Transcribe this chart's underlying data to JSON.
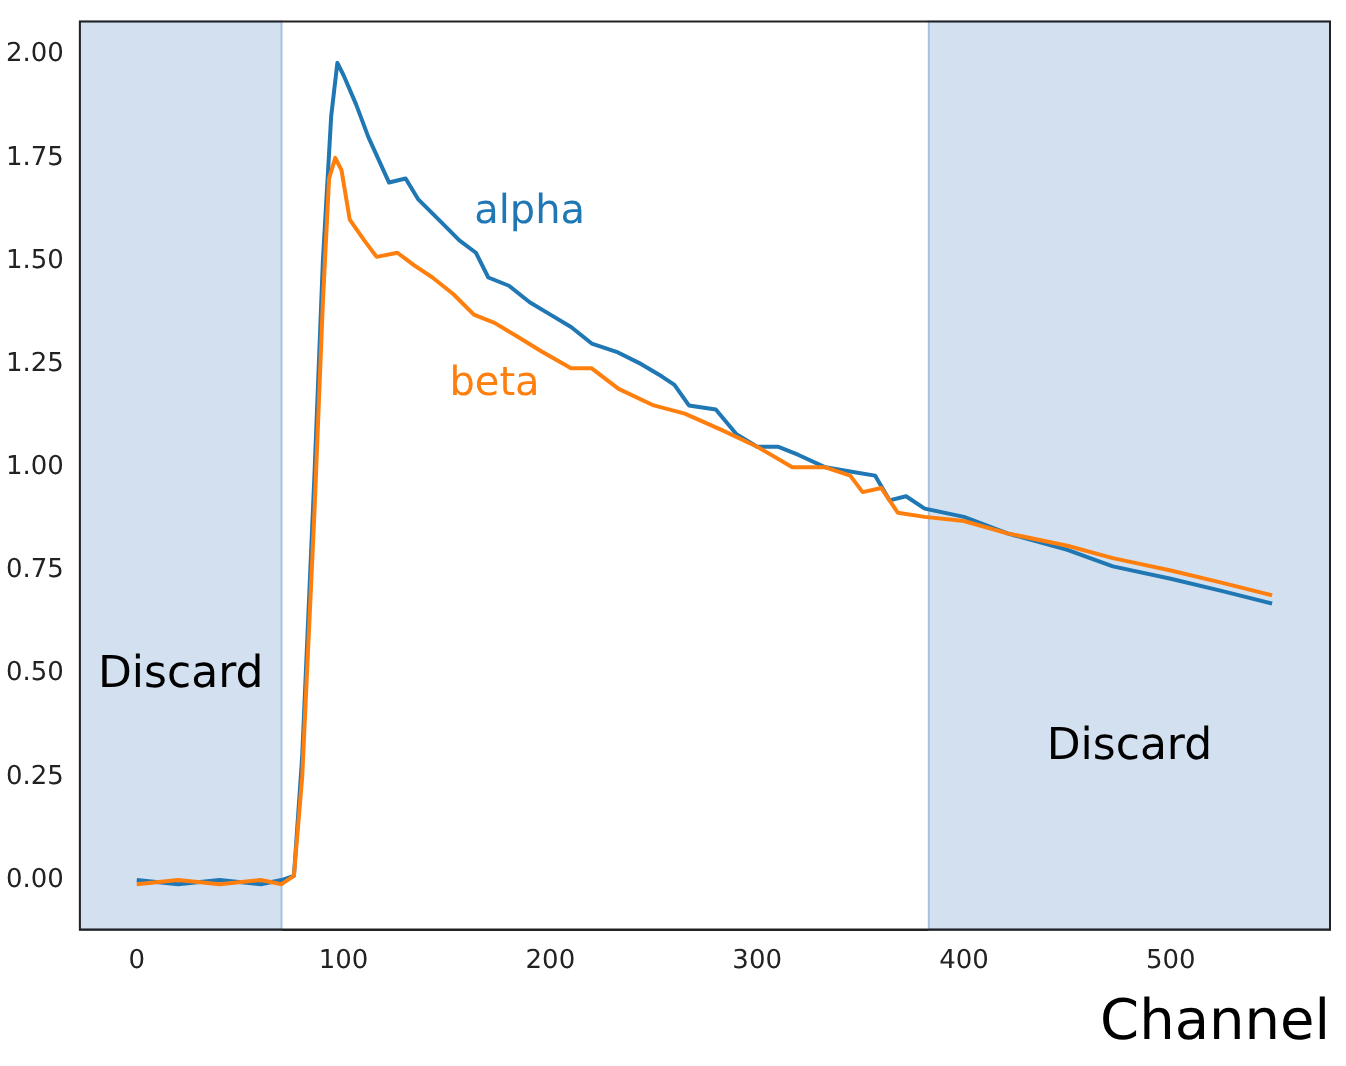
{
  "chart_data": {
    "type": "line",
    "xlabel": "Channel",
    "xlim": [
      -27.5,
      577
    ],
    "xticks": [
      0,
      100,
      200,
      300,
      400,
      500
    ],
    "ylim": [
      -0.12,
      2.08
    ],
    "yticks": [
      {
        "value": 0,
        "label": "0.00"
      },
      {
        "value": 0.25,
        "label": "0.25"
      },
      {
        "value": 0.5,
        "label": "0.50"
      },
      {
        "value": 0.75,
        "label": "0.75"
      },
      {
        "value": 1,
        "label": "1.00"
      },
      {
        "value": 1.25,
        "label": "1.25"
      },
      {
        "value": 1.5,
        "label": "1.50"
      },
      {
        "value": 1.75,
        "label": "1.75"
      },
      {
        "value": 2,
        "label": "2.00"
      }
    ],
    "grid": false,
    "legend": false,
    "marker": "none",
    "line_style": "solid",
    "series": [
      {
        "name": "alpha",
        "color": "#1f77b4",
        "x": [
          0,
          20,
          40,
          60,
          70,
          76,
          80,
          86,
          90,
          94,
          97,
          100,
          106,
          112,
          122,
          130,
          136,
          146,
          156,
          164,
          170,
          180,
          190,
          200,
          210,
          220,
          232,
          244,
          254,
          260,
          267,
          280,
          290,
          300,
          310,
          320,
          333,
          345,
          357,
          364,
          372,
          381,
          400,
          421,
          450,
          472,
          500,
          525,
          549
        ],
        "values": [
          0,
          -0.01,
          0,
          -0.01,
          0,
          0.01,
          0.3,
          0.99,
          1.5,
          1.85,
          1.98,
          1.95,
          1.88,
          1.8,
          1.69,
          1.7,
          1.65,
          1.6,
          1.55,
          1.52,
          1.46,
          1.44,
          1.4,
          1.37,
          1.34,
          1.3,
          1.28,
          1.25,
          1.22,
          1.2,
          1.15,
          1.14,
          1.08,
          1.05,
          1.05,
          1.03,
          1.0,
          0.99,
          0.98,
          0.92,
          0.93,
          0.9,
          0.88,
          0.84,
          0.8,
          0.76,
          0.73,
          0.7,
          0.67
        ]
      },
      {
        "name": "beta",
        "color": "#ff7f0e",
        "x": [
          0,
          20,
          40,
          60,
          70,
          76,
          80,
          86,
          90,
          93,
          96,
          99,
          103,
          110,
          116,
          126,
          134,
          143,
          153,
          163,
          173,
          183,
          196,
          210,
          220,
          233,
          250,
          265,
          283,
          300,
          317,
          333,
          345,
          351,
          360,
          368,
          381,
          400,
          421,
          450,
          472,
          500,
          525,
          549
        ],
        "values": [
          -0.01,
          0,
          -0.01,
          0,
          -0.01,
          0.01,
          0.25,
          0.9,
          1.4,
          1.7,
          1.75,
          1.72,
          1.6,
          1.55,
          1.51,
          1.52,
          1.49,
          1.46,
          1.42,
          1.37,
          1.35,
          1.32,
          1.28,
          1.24,
          1.24,
          1.19,
          1.15,
          1.13,
          1.09,
          1.05,
          1.0,
          1.0,
          0.98,
          0.94,
          0.95,
          0.89,
          0.88,
          0.87,
          0.84,
          0.81,
          0.78,
          0.75,
          0.72,
          0.69
        ]
      }
    ],
    "bands": [
      {
        "axis": "x",
        "from": -27.5,
        "to": 70,
        "color": "#d3e0f0",
        "label": "Discard"
      },
      {
        "axis": "x",
        "from": 383,
        "to": 577,
        "color": "#d3e0f0",
        "label": "Discard"
      }
    ]
  }
}
